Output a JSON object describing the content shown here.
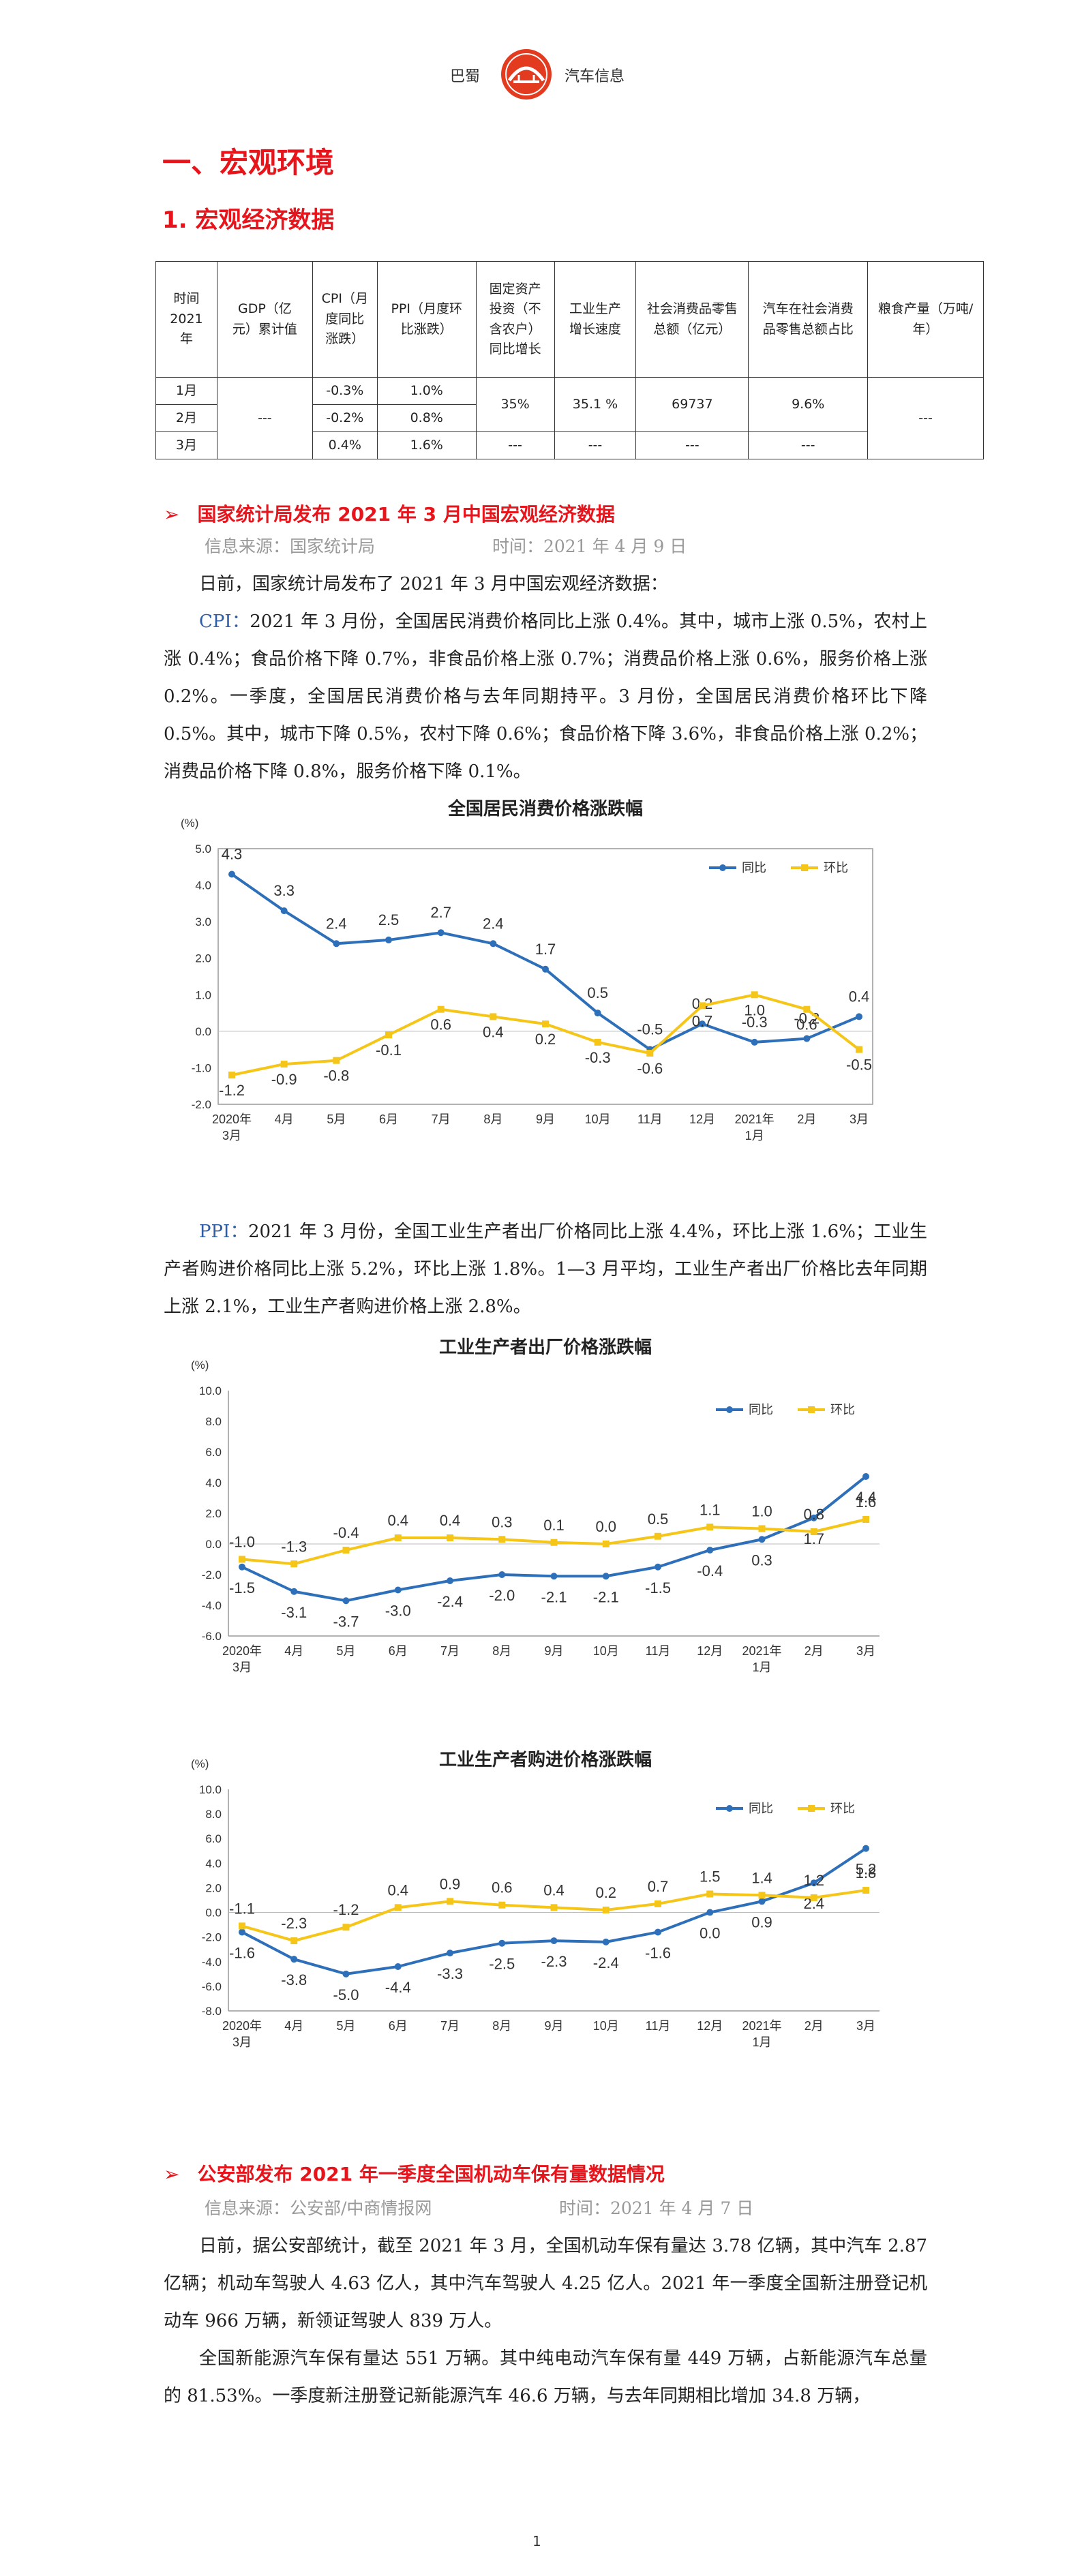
{
  "header": {
    "left": "巴蜀",
    "right": "汽车信息"
  },
  "section": {
    "title": "一、宏观环境",
    "subtitle": "1. 宏观经济数据"
  },
  "table": {
    "headers": [
      "时间\n2021\n年",
      "GDP（亿\n元）累计值",
      "CPI（月\n度同比\n涨跌）",
      "PPI（月度环\n比涨跌）",
      "固定资产\n投资（不\n含农户）\n同比增长",
      "工业生产\n增长速度",
      "社会消费品零售\n总额（亿元）",
      "汽车在社会消费\n品零售总额占比",
      "粮食产量（万吨/\n年）"
    ],
    "months": [
      "1月",
      "2月",
      "3月"
    ],
    "gdp": "---",
    "cpi": [
      "-0.3%",
      "-0.2%",
      "0.4%"
    ],
    "ppi": [
      "1.0%",
      "0.8%",
      "1.6%"
    ],
    "fixed_q1": "35%",
    "industry_q1": "35.1 %",
    "retail_q1": "69737",
    "auto_share_q1": "9.6%",
    "fixed_m3": "---",
    "industry_m3": "---",
    "retail_m3": "---",
    "auto_share_m3": "---",
    "grain": "---"
  },
  "news1": {
    "title": "国家统计局发布 2021 年 3 月中国宏观经济数据",
    "source": "信息来源：国家统计局",
    "time": "时间：2021 年 4 月 9 日",
    "p1": "日前，国家统计局发布了 2021 年 3 月中国宏观经济数据：",
    "cpi_lead": "CPI：",
    "cpi_text": "2021 年 3 月份，全国居民消费价格同比上涨 0.4%。其中，城市上涨 0.5%，农村上涨 0.4%；食品价格下降 0.7%，非食品价格上涨 0.7%；消费品价格上涨 0.6%，服务价格上涨 0.2%。一季度，全国居民消费价格与去年同期持平。3 月份，全国居民消费价格环比下降 0.5%。其中，城市下降 0.5%，农村下降 0.6%；食品价格下降 3.6%，非食品价格上涨 0.2%；消费品价格下降 0.8%，服务价格下降 0.1%。",
    "ppi_lead": "PPI：",
    "ppi_text": "2021 年 3 月份，全国工业生产者出厂价格同比上涨 4.4%，环比上涨 1.6%；工业生产者购进价格同比上涨 5.2%，环比上涨 1.8%。1—3 月平均，工业生产者出厂价格比去年同期上涨 2.1%，工业生产者购进价格上涨 2.8%。"
  },
  "chart_data": [
    {
      "type": "line",
      "title": "全国居民消费价格涨跌幅",
      "ylabel": "(%)",
      "ylim": [
        -2.0,
        5.0
      ],
      "yticks": [
        "5.0",
        "4.0",
        "3.0",
        "2.0",
        "1.0",
        "0.0",
        "-1.0",
        "-2.0"
      ],
      "categories": [
        "2020年\n3月",
        "4月",
        "5月",
        "6月",
        "7月",
        "8月",
        "9月",
        "10月",
        "11月",
        "12月",
        "2021年\n1月",
        "2月",
        "3月"
      ],
      "series": [
        {
          "name": "同比",
          "color": "#2e6fba",
          "values": [
            4.3,
            3.3,
            2.4,
            2.5,
            2.7,
            2.4,
            1.7,
            0.5,
            -0.5,
            0.2,
            -0.3,
            -0.2,
            0.4
          ]
        },
        {
          "name": "环比",
          "color": "#f5c518",
          "values": [
            -1.2,
            -0.9,
            -0.8,
            -0.1,
            0.6,
            0.4,
            0.2,
            -0.3,
            -0.6,
            0.7,
            1.0,
            0.6,
            -0.5
          ]
        }
      ],
      "legend": "top-right"
    },
    {
      "type": "line",
      "title": "工业生产者出厂价格涨跌幅",
      "ylabel": "(%)",
      "ylim": [
        -6.0,
        10.0
      ],
      "yticks": [
        "10.0",
        "8.0",
        "6.0",
        "4.0",
        "2.0",
        "0.0",
        "-2.0",
        "-4.0",
        "-6.0"
      ],
      "categories": [
        "2020年\n3月",
        "4月",
        "5月",
        "6月",
        "7月",
        "8月",
        "9月",
        "10月",
        "11月",
        "12月",
        "2021年\n1月",
        "2月",
        "3月"
      ],
      "series": [
        {
          "name": "同比",
          "color": "#2e6fba",
          "values": [
            -1.5,
            -3.1,
            -3.7,
            -3.0,
            -2.4,
            -2.0,
            -2.1,
            -2.1,
            -1.5,
            -0.4,
            0.3,
            1.7,
            4.4
          ]
        },
        {
          "name": "环比",
          "color": "#f5c518",
          "values": [
            -1.0,
            -1.3,
            -0.4,
            0.4,
            0.4,
            0.3,
            0.1,
            0.0,
            0.5,
            1.1,
            1.0,
            0.8,
            1.6
          ]
        }
      ],
      "legend": "top-right"
    },
    {
      "type": "line",
      "title": "工业生产者购进价格涨跌幅",
      "ylabel": "(%)",
      "ylim": [
        -8.0,
        10.0
      ],
      "yticks": [
        "10.0",
        "8.0",
        "6.0",
        "4.0",
        "2.0",
        "0.0",
        "-2.0",
        "-4.0",
        "-6.0",
        "-8.0"
      ],
      "categories": [
        "2020年\n3月",
        "4月",
        "5月",
        "6月",
        "7月",
        "8月",
        "9月",
        "10月",
        "11月",
        "12月",
        "2021年\n1月",
        "2月",
        "3月"
      ],
      "series": [
        {
          "name": "同比",
          "color": "#2e6fba",
          "values": [
            -1.6,
            -3.8,
            -5.0,
            -4.4,
            -3.3,
            -2.5,
            -2.3,
            -2.4,
            -1.6,
            0.0,
            0.9,
            2.4,
            5.2
          ]
        },
        {
          "name": "环比",
          "color": "#f5c518",
          "values": [
            -1.1,
            -2.3,
            -1.2,
            0.4,
            0.9,
            0.6,
            0.4,
            0.2,
            0.7,
            1.5,
            1.4,
            1.2,
            1.8
          ]
        }
      ],
      "legend": "top-right"
    }
  ],
  "news2": {
    "title": "公安部发布 2021 年一季度全国机动车保有量数据情况",
    "source": "信息来源：公安部/中商情报网",
    "time": "时间：2021 年 4 月 7 日",
    "p1": "日前，据公安部统计，截至 2021 年 3 月，全国机动车保有量达 3.78 亿辆，其中汽车 2.87 亿辆；机动车驾驶人 4.63 亿人，其中汽车驾驶人 4.25 亿人。2021 年一季度全国新注册登记机动车 966 万辆，新领证驾驶人 839 万人。",
    "p2": "全国新能源汽车保有量达 551 万辆。其中纯电动汽车保有量 449 万辆，占新能源汽车总量的 81.53%。一季度新注册登记新能源汽车 46.6 万辆，与去年同期相比增加 34.8 万辆，"
  },
  "page_number": "1"
}
